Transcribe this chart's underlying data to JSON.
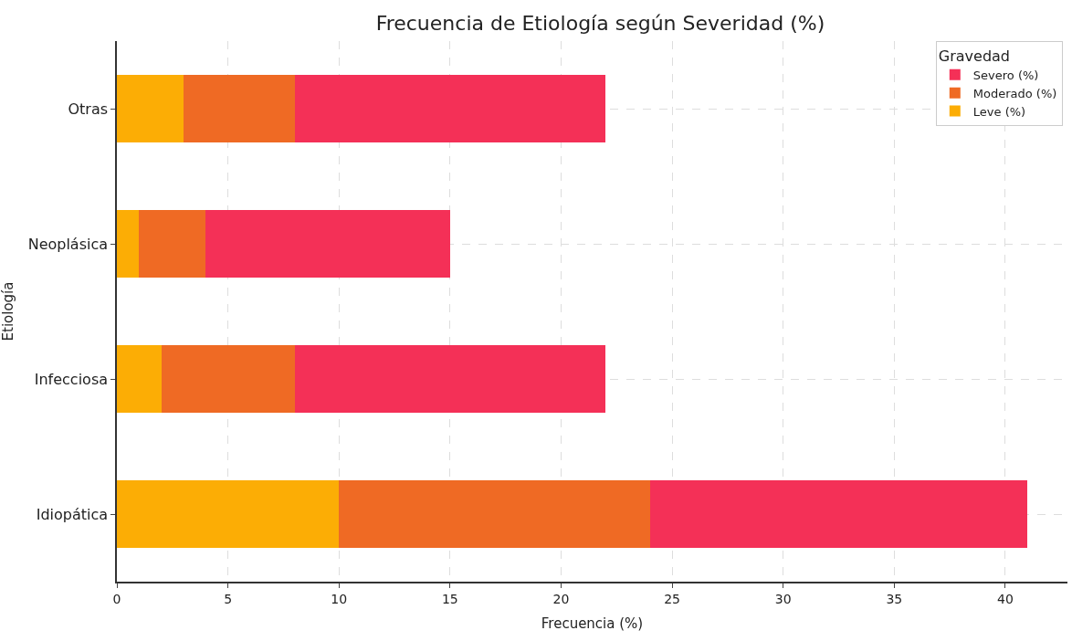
{
  "chart_data": {
    "type": "bar",
    "title": "Frecuencia de Etiología según Severidad (%)",
    "xlabel": "Frecuencia (%)",
    "ylabel": "Etiología",
    "legend_title": "Gravedad",
    "orientation": "horizontal",
    "stacked": true,
    "categories": [
      "Otras",
      "Neoplásica",
      "Infecciosa",
      "Idiopática"
    ],
    "series": [
      {
        "name": "Leve (%)",
        "color": "#fcad05",
        "values": [
          3,
          1,
          2,
          10
        ]
      },
      {
        "name": "Moderado (%)",
        "color": "#ef6a24",
        "values": [
          5,
          3,
          6,
          14
        ]
      },
      {
        "name": "Severo (%)",
        "color": "#f43057",
        "values": [
          14,
          11,
          14,
          17
        ]
      }
    ],
    "xlim": [
      0,
      42.8
    ],
    "xticks": [
      0,
      5,
      10,
      15,
      20,
      25,
      30,
      35,
      40
    ],
    "grid": true,
    "legend": "top right"
  }
}
